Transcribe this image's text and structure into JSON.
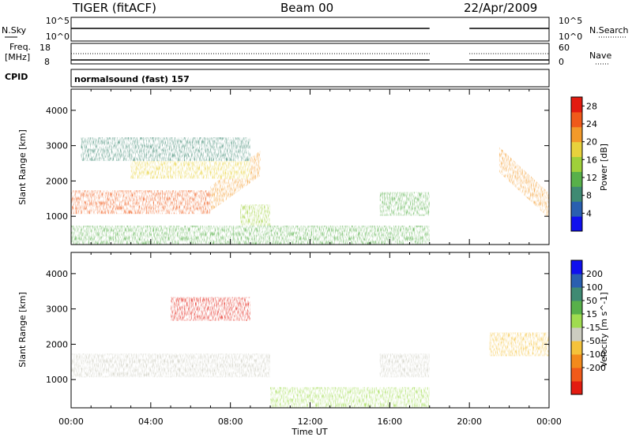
{
  "header": {
    "radar": "TIGER (fitACF)",
    "beam": "Beam 00",
    "date": "22/Apr/2009"
  },
  "status_panels": {
    "nsky_label": "N.Sky",
    "nsky_ticks": [
      "10^5",
      "10^0"
    ],
    "nsearch_label": "N.Search",
    "nsearch_ticks": [
      "10^5",
      "10^0"
    ],
    "freq_label": "Freq.",
    "freq_unit": "[MHz]",
    "freq_ticks": [
      "18",
      "8"
    ],
    "nave_label": "Nave",
    "nave_ticks": [
      "60",
      "0"
    ],
    "cpid_label": "CPID",
    "cpid_value": "normalsound (fast) 157"
  },
  "chart_data": [
    {
      "type": "heatmap",
      "title": "",
      "xlabel": "Time UT",
      "ylabel": "Slant Range [km]",
      "x_ticks": [
        "00:00",
        "04:00",
        "08:00",
        "12:00",
        "16:00",
        "20:00",
        "00:00"
      ],
      "xlim_hours": [
        0,
        24
      ],
      "ylim": [
        200,
        4600
      ],
      "y_ticks": [
        1000,
        2000,
        3000,
        4000
      ],
      "colorbar": {
        "label": "Power [dB]",
        "ticks": [
          4,
          8,
          12,
          16,
          20,
          24,
          28
        ],
        "range": [
          0,
          30
        ],
        "colors": [
          "#1010ee",
          "#2a5fb0",
          "#3f8a73",
          "#58b04a",
          "#9fd03a",
          "#e8d23c",
          "#f39a2a",
          "#f05a1a",
          "#e31b10"
        ]
      },
      "data_gap_hours": [
        18.0,
        20.0
      ],
      "features": [
        {
          "name": "E-region band",
          "t_start": 0.0,
          "t_end": 7.0,
          "range_center_km": 1400,
          "power_db": 26
        },
        {
          "name": "rising F-region band",
          "t_start": 7.0,
          "t_end": 9.5,
          "range_start_km": 1500,
          "range_end_km": 2500,
          "power_db": 22
        },
        {
          "name": "upper band",
          "t_start": 3.0,
          "t_end": 9.0,
          "range_center_km": 2400,
          "power_db": 20
        },
        {
          "name": "high-range patch",
          "t_start": 0.5,
          "t_end": 9.0,
          "range_center_km": 2900,
          "power_db": 8
        },
        {
          "name": "mid patch",
          "t_start": 8.5,
          "t_end": 10.0,
          "range_center_km": 1000,
          "power_db": 14
        },
        {
          "name": "afternoon patch",
          "t_start": 15.5,
          "t_end": 18.0,
          "range_center_km": 1350,
          "power_db": 10
        },
        {
          "name": "ground scatter",
          "t_start": 0.0,
          "t_end": 18.0,
          "range_center_km": 400,
          "power_db": 10
        },
        {
          "name": "late band",
          "t_start": 21.5,
          "t_end": 24.0,
          "range_start_km": 2600,
          "range_end_km": 1300,
          "power_db": 24
        }
      ]
    },
    {
      "type": "heatmap",
      "title": "",
      "xlabel": "Time UT",
      "ylabel": "Slant Range [km]",
      "x_ticks": [
        "00:00",
        "04:00",
        "08:00",
        "12:00",
        "16:00",
        "20:00",
        "00:00"
      ],
      "xlim_hours": [
        0,
        24
      ],
      "ylim": [
        200,
        4600
      ],
      "y_ticks": [
        1000,
        2000,
        3000,
        4000
      ],
      "colorbar": {
        "label": "Velocity [m s^-1]",
        "ticks": [
          200,
          100,
          50,
          15,
          -15,
          -50,
          -100,
          -200
        ],
        "colors": [
          "#1010ee",
          "#2a5fb0",
          "#3f8a73",
          "#58b04a",
          "#a0dc50",
          "#cdcdc0",
          "#f5c23a",
          "#f38a1c",
          "#f05a1a",
          "#e31b10"
        ]
      },
      "data_gap_hours": [
        18.0,
        20.0
      ],
      "features": [
        {
          "name": "ground scatter band",
          "t_start": 0.0,
          "t_end": 10.0,
          "range_center_km": 1400,
          "velocity_ms": 0
        },
        {
          "name": "high-velocity patch",
          "t_start": 5.0,
          "t_end": 9.0,
          "range_center_km": 3000,
          "velocity_ms": -150
        },
        {
          "name": "afternoon patch",
          "t_start": 15.5,
          "t_end": 18.0,
          "range_center_km": 1400,
          "velocity_ms": 0
        },
        {
          "name": "low-range returns",
          "t_start": 10.0,
          "t_end": 18.0,
          "range_center_km": 450,
          "velocity_ms": 40
        },
        {
          "name": "late patch",
          "t_start": 21.0,
          "t_end": 24.0,
          "range_center_km": 2000,
          "velocity_ms": -30
        }
      ]
    }
  ]
}
